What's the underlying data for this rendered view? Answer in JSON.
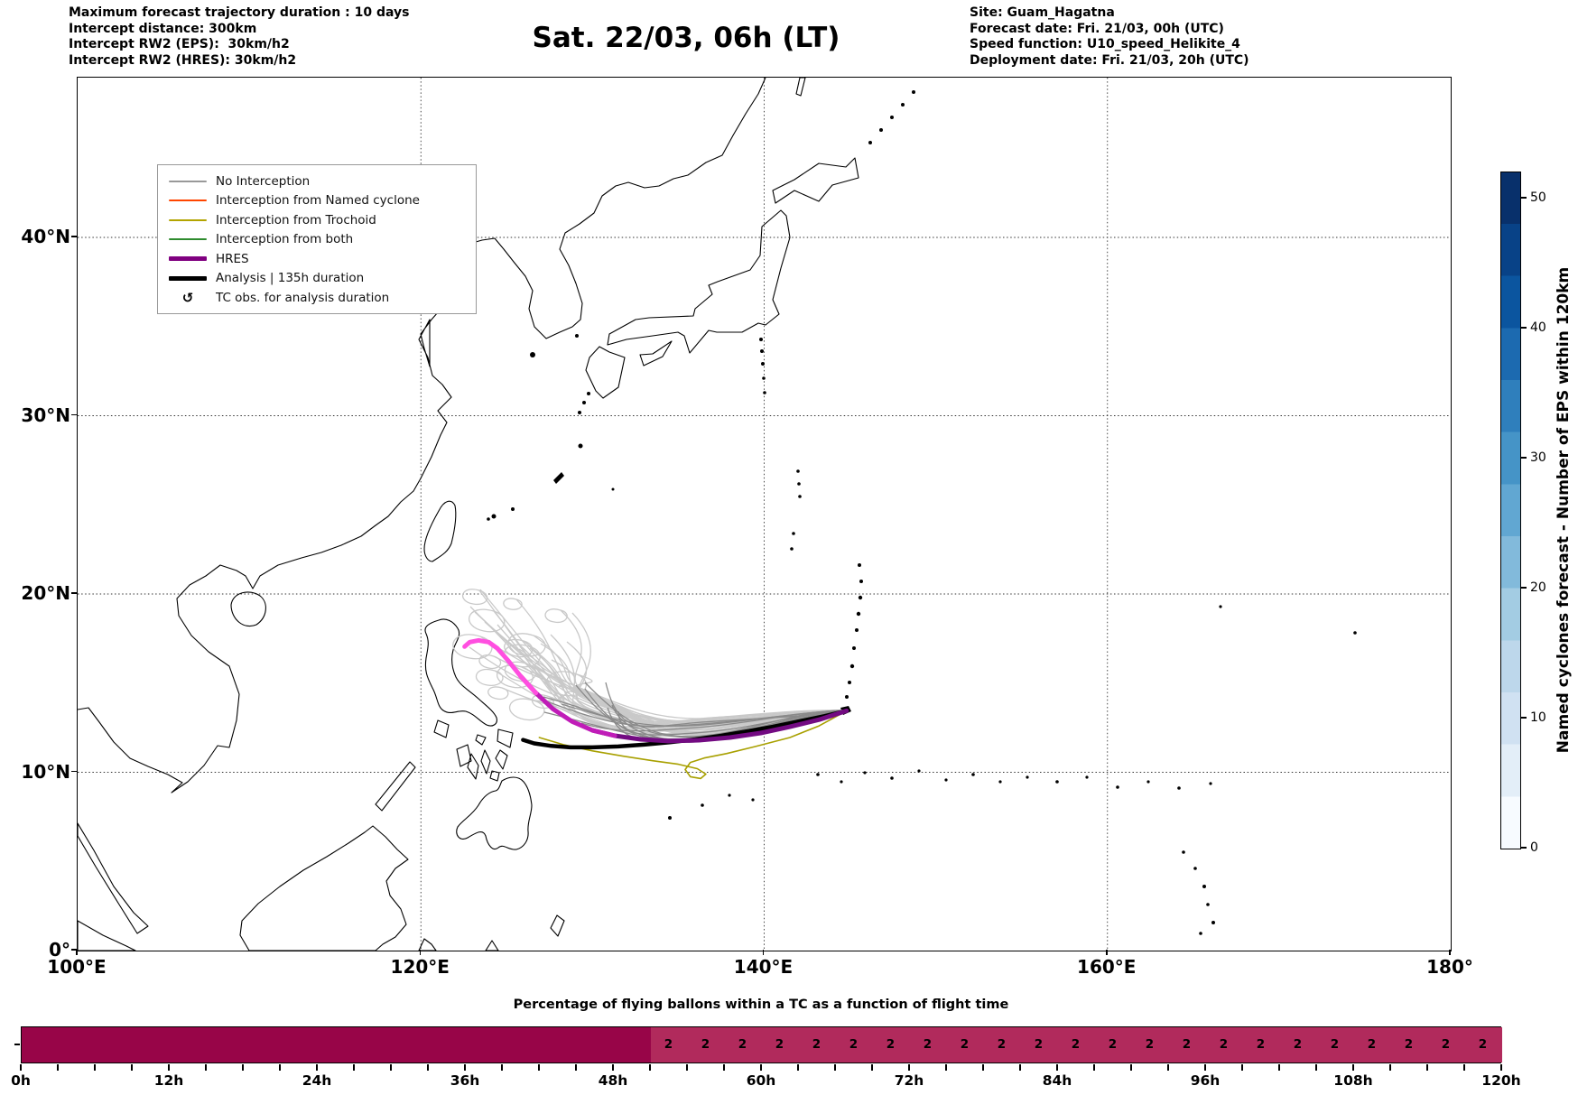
{
  "header": {
    "left_lines": [
      "Maximum forecast trajectory duration : 10 days",
      "Intercept distance: 300km",
      "Intercept RW2 (EPS):  30km/h2",
      "Intercept RW2 (HRES): 30km/h2"
    ],
    "title": "Sat. 22/03, 06h (LT)",
    "right_lines": [
      "Site: Guam_Hagatna",
      "Forecast date: Fri. 21/03, 00h (UTC)",
      "Speed function: U10_speed_Helikite_4",
      "Deployment date: Fri. 21/03, 20h (UTC)"
    ]
  },
  "map": {
    "x_tick_labels": [
      "100°E",
      "120°E",
      "140°E",
      "160°E",
      "180°"
    ],
    "x_tick_lons": [
      100,
      120,
      140,
      160,
      180
    ],
    "y_tick_labels": [
      "0°",
      "10°N",
      "20°N",
      "30°N",
      "40°N"
    ],
    "y_tick_lats": [
      0,
      10,
      20,
      30,
      40
    ],
    "grid_lons": [
      120,
      140,
      160
    ],
    "grid_lats": [
      10,
      20,
      30,
      40
    ],
    "legend_items": [
      {
        "label": "No Interception",
        "color": "#999999",
        "lw": 2
      },
      {
        "label": "Interception from Named cyclone",
        "color": "#ff4500",
        "lw": 2
      },
      {
        "label": "Interception from Trochoid",
        "color": "#b3a400",
        "lw": 2
      },
      {
        "label": "Interception from both",
        "color": "#2e8b2e",
        "lw": 2
      },
      {
        "label": "HRES",
        "color": "#800080",
        "lw": 5
      },
      {
        "label": "Analysis | 135h duration",
        "color": "#000000",
        "lw": 5
      },
      {
        "label": "TC obs. for analysis duration",
        "marker": "↺"
      }
    ]
  },
  "colorbar": {
    "label": "Named cyclones forecast - Number of EPS within 120km",
    "tick_values": [
      0,
      10,
      20,
      30,
      40,
      50
    ],
    "range": [
      0,
      52
    ],
    "colormap": "Blues"
  },
  "bottom_chart": {
    "title": "Percentage of flying ballons within a TC as a function of flight time",
    "x_tick_labels": [
      "0h",
      "12h",
      "24h",
      "36h",
      "48h",
      "60h",
      "72h",
      "84h",
      "96h",
      "108h",
      "120h"
    ]
  },
  "chart_data": [
    {
      "type": "line",
      "title": "Balloon forecast trajectories from Guam_Hagatna",
      "x_axis": {
        "ticks": [
          "100°E",
          "120°E",
          "140°E",
          "160°E",
          "180°"
        ],
        "range_lon": [
          100,
          180
        ]
      },
      "y_axis": {
        "ticks": [
          "0°",
          "10°N",
          "20°N",
          "30°N",
          "40°N"
        ],
        "range_lat": [
          0,
          49
        ]
      },
      "grid": "dotted",
      "series": [
        {
          "name": "EPS ensemble - No Interception",
          "kind": "ensemble",
          "count_light": 33,
          "count_dark": 12,
          "colors": [
            "#c9c9c9",
            "#8a8a8a"
          ],
          "width": 1.3,
          "origin_lon_lat": [
            144.8,
            13.45
          ],
          "terminus_region": {
            "lon": [
              122.5,
              130.5
            ],
            "lat": [
              11.5,
              21.0
            ]
          },
          "note": "spaghetti of balloon trajectories drifting west from Guam with loops near Luzon"
        },
        {
          "name": "Interception from Trochoid",
          "kind": "line",
          "color": "#a8a000",
          "width": 1.6,
          "points_lon_lat": [
            [
              126.9,
              11.95
            ],
            [
              128.3,
              11.55
            ],
            [
              130,
              11.2
            ],
            [
              131.8,
              10.9
            ],
            [
              133.5,
              10.65
            ],
            [
              135,
              10.45
            ],
            [
              136.1,
              10.2
            ],
            [
              136.6,
              9.9
            ],
            [
              136.3,
              9.65
            ],
            [
              135.7,
              9.75
            ],
            [
              135.4,
              10.15
            ],
            [
              135.7,
              10.55
            ],
            [
              136.5,
              10.8
            ],
            [
              137.8,
              11.05
            ],
            [
              139.5,
              11.45
            ],
            [
              141.5,
              11.95
            ],
            [
              143.2,
              12.6
            ],
            [
              144.8,
              13.45
            ]
          ]
        },
        {
          "name": "Analysis | 135h duration",
          "kind": "line",
          "color": "#000000",
          "width": 4.5,
          "points_lon_lat": [
            [
              144.8,
              13.45
            ],
            [
              143.5,
              13.15
            ],
            [
              142,
              12.85
            ],
            [
              140.5,
              12.55
            ],
            [
              139,
              12.3
            ],
            [
              137.5,
              12.05
            ],
            [
              136,
              11.85
            ],
            [
              134.5,
              11.68
            ],
            [
              133,
              11.55
            ],
            [
              131.5,
              11.45
            ],
            [
              130,
              11.4
            ],
            [
              128.7,
              11.4
            ],
            [
              127.6,
              11.48
            ],
            [
              126.6,
              11.62
            ],
            [
              125.95,
              11.82
            ]
          ]
        },
        {
          "name": "HRES",
          "kind": "line",
          "width": 5,
          "gradient_colors": [
            "#730b82",
            "#c01cb8",
            "#ff4fe0"
          ],
          "points_lon_lat": [
            [
              144.8,
              13.45
            ],
            [
              143.2,
              12.95
            ],
            [
              141.5,
              12.55
            ],
            [
              139.8,
              12.2
            ],
            [
              138,
              11.95
            ],
            [
              136.2,
              11.8
            ],
            [
              134.4,
              11.75
            ],
            [
              132.8,
              11.85
            ],
            [
              131.3,
              12.05
            ],
            [
              130,
              12.35
            ],
            [
              128.8,
              12.85
            ],
            [
              127.7,
              13.55
            ],
            [
              126.7,
              14.45
            ],
            [
              125.8,
              15.4
            ],
            [
              125.05,
              16.3
            ],
            [
              124.45,
              16.95
            ],
            [
              123.95,
              17.3
            ],
            [
              123.35,
              17.4
            ],
            [
              122.85,
              17.3
            ],
            [
              122.55,
              17.05
            ]
          ]
        }
      ],
      "colorbar": {
        "label": "Named cyclones forecast - Number of EPS within 120km",
        "range": [
          0,
          52
        ],
        "ticks": [
          0,
          10,
          20,
          30,
          40,
          50
        ],
        "colormap": "Blues"
      }
    },
    {
      "type": "bar",
      "title": "Percentage of flying ballons within a TC as a function of flight time",
      "x_range_hours": [
        0,
        120
      ],
      "x_tick_labels": [
        "0h",
        "12h",
        "24h",
        "36h",
        "48h",
        "60h",
        "72h",
        "84h",
        "96h",
        "108h",
        "120h"
      ],
      "minor_tick_step_hours": 3,
      "bar_height_pct": 100,
      "segments": [
        {
          "from_h": 0,
          "to_h": 51,
          "color": "#980548",
          "annotation": null
        },
        {
          "from_h": 51,
          "to_h": 120,
          "color": "#b12a5c",
          "annotation": "2",
          "annotation_every_h": 3
        }
      ],
      "annotation_value": "2",
      "annotation_hours_start": 52.5,
      "annotation_hours_end": 118.5
    }
  ]
}
